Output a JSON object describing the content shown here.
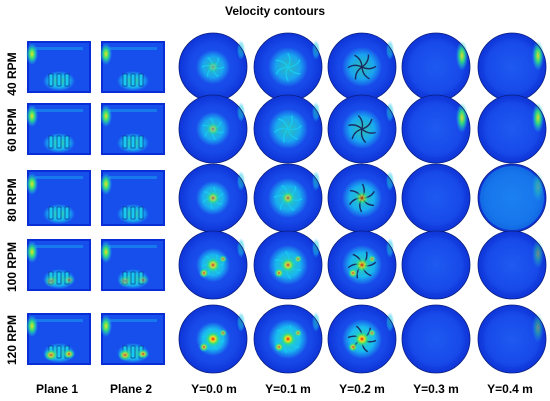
{
  "title": "Velocity contours",
  "rows": [
    "40 RPM",
    "60 RPM",
    "80 RPM",
    "100 RPM",
    "120 RPM"
  ],
  "columns": [
    "Plane 1",
    "Plane 2",
    "Y=0.0 m",
    "Y=0.1 m",
    "Y=0.2 m",
    "Y=0.3 m",
    "Y=0.4 m"
  ],
  "colors": {
    "background_field": "#0a2ed6",
    "low": "#1a55f0",
    "mid": "#18c8f0",
    "green": "#33e07a",
    "yellow": "#f0e020",
    "red": "#e81a10"
  }
}
